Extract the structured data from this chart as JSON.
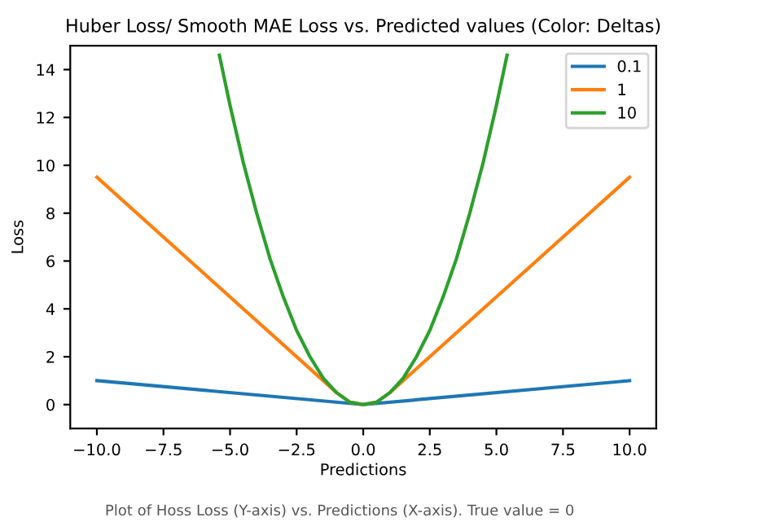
{
  "chart_data": {
    "type": "line",
    "title": "Huber Loss/ Smooth MAE Loss vs. Predicted values (Color: Deltas)",
    "xlabel": "Predictions",
    "ylabel": "Loss",
    "series": [
      {
        "name": "0.1",
        "color": "#1f77b4",
        "x": [
          -10,
          0,
          10
        ],
        "values": [
          1,
          0,
          1
        ]
      },
      {
        "name": "1",
        "color": "#ff7f0e",
        "x": [
          -10,
          -1,
          -0.5,
          0,
          0.5,
          1,
          10
        ],
        "values": [
          9.5,
          0.5,
          0.1,
          0,
          0.1,
          0.5,
          9.5
        ]
      },
      {
        "name": "10",
        "color": "#2ca02c",
        "x": [
          -5.4,
          -5,
          -4.5,
          -4,
          -3.5,
          -3,
          -2.5,
          -2,
          -1.5,
          -1,
          -0.5,
          0,
          0.5,
          1,
          1.5,
          2,
          2.5,
          3,
          3.5,
          4,
          4.5,
          5,
          5.4
        ],
        "values": [
          14.6,
          12.5,
          10.1,
          8,
          6.1,
          4.5,
          3.1,
          2,
          1.1,
          0.5,
          0.1,
          0,
          0.1,
          0.5,
          1.1,
          2,
          3.1,
          4.5,
          6.1,
          8,
          10.1,
          12.5,
          14.6
        ]
      }
    ],
    "xlim": [
      -11,
      11
    ],
    "ylim": [
      -1,
      15
    ],
    "xticks": [
      {
        "value": -10,
        "label": "−10.0"
      },
      {
        "value": -7.5,
        "label": "−7.5"
      },
      {
        "value": -5,
        "label": "−5.0"
      },
      {
        "value": -2.5,
        "label": "−2.5"
      },
      {
        "value": 0,
        "label": "0.0"
      },
      {
        "value": 2.5,
        "label": "2.5"
      },
      {
        "value": 5,
        "label": "5.0"
      },
      {
        "value": 7.5,
        "label": "7.5"
      },
      {
        "value": 10,
        "label": "10.0"
      }
    ],
    "yticks": [
      0,
      2,
      4,
      6,
      8,
      10,
      12,
      14
    ],
    "legend": "top right",
    "grid": false,
    "line_style": "solid",
    "marker": "none",
    "annotations": [
      "Plot of Hoss Loss (Y-axis) vs. Predictions (X-axis). True value = 0"
    ]
  }
}
